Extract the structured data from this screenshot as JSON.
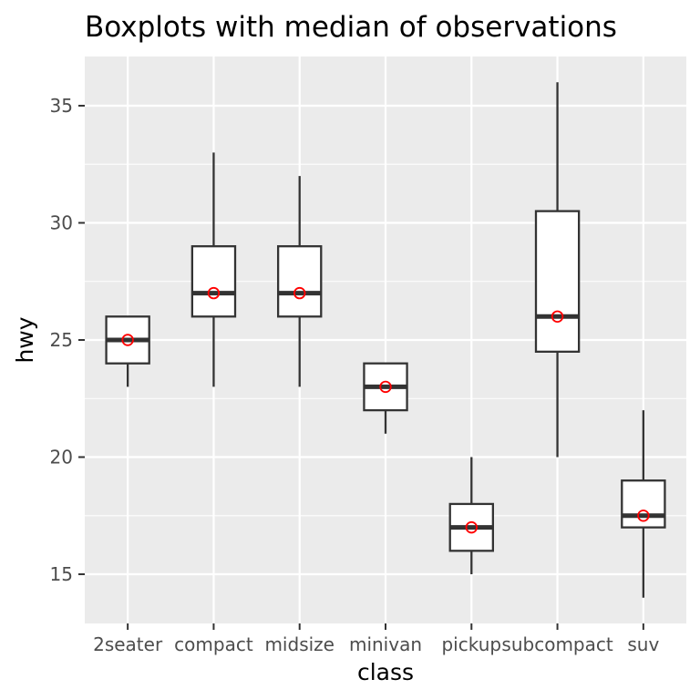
{
  "chart_data": {
    "type": "boxplot",
    "title": "Boxplots with median of observations",
    "xlabel": "class",
    "ylabel": "hwy",
    "categories": [
      "2seater",
      "compact",
      "midsize",
      "minivan",
      "pickup",
      "subcompact",
      "suv"
    ],
    "boxes": [
      {
        "category": "2seater",
        "min": 23,
        "q1": 24,
        "median": 25,
        "q3": 26,
        "max": 26
      },
      {
        "category": "compact",
        "min": 23,
        "q1": 26,
        "median": 27,
        "q3": 29,
        "max": 33
      },
      {
        "category": "midsize",
        "min": 23,
        "q1": 26,
        "median": 27,
        "q3": 29,
        "max": 32
      },
      {
        "category": "minivan",
        "min": 21,
        "q1": 22,
        "median": 23,
        "q3": 24,
        "max": 24
      },
      {
        "category": "pickup",
        "min": 15,
        "q1": 16,
        "median": 17,
        "q3": 18,
        "max": 20
      },
      {
        "category": "subcompact",
        "min": 20,
        "q1": 24.5,
        "median": 26,
        "q3": 30.5,
        "max": 36
      },
      {
        "category": "suv",
        "min": 14,
        "q1": 17,
        "median": 17.5,
        "q3": 19,
        "max": 22
      }
    ],
    "median_points": [
      25,
      27,
      27,
      23,
      17,
      26,
      17.5
    ],
    "yticks": [
      15,
      20,
      25,
      30,
      35
    ],
    "ylim": [
      12.9,
      37.1
    ],
    "grid": true,
    "colors": {
      "panel_background": "#ebebeb",
      "grid": "#ffffff",
      "box_fill": "#ffffff",
      "box_line": "#333333",
      "median_point": "#ff0000",
      "tick_mark": "#333333"
    }
  }
}
